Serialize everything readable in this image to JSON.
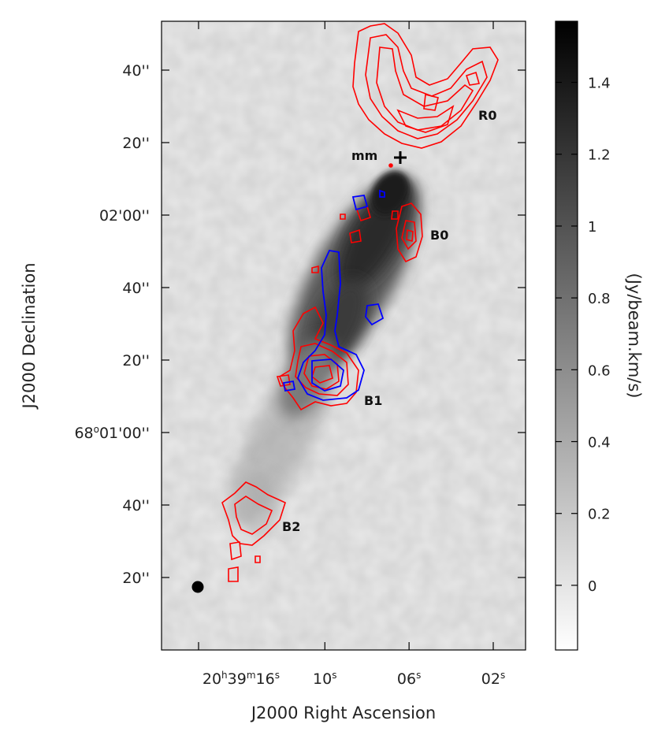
{
  "chart_data": {
    "type": "heatmap",
    "title": "",
    "xlabel": "J2000 Right Ascension",
    "ylabel": "J2000 Declination",
    "x_ticks": [
      {
        "sec": 16,
        "hms": [
          "20",
          "h",
          "39",
          "m",
          "16",
          "s"
        ]
      },
      {
        "sec": 10,
        "hms": [
          "",
          "",
          "",
          "",
          "10",
          "s"
        ]
      },
      {
        "sec": 6,
        "hms": [
          "",
          "",
          "",
          "",
          "06",
          "s"
        ]
      },
      {
        "sec": 2,
        "hms": [
          "",
          "",
          "",
          "",
          "02",
          "s"
        ]
      }
    ],
    "y_ticks": [
      {
        "arcsec_offset": 100,
        "text": "40''"
      },
      {
        "arcsec_offset": 80,
        "text": "20''"
      },
      {
        "arcsec_offset": 60,
        "text": "02'00''"
      },
      {
        "arcsec_offset": 40,
        "text": "40''"
      },
      {
        "arcsec_offset": 20,
        "text": "20''"
      },
      {
        "arcsec_offset": 0,
        "dms": [
          "68",
          "o",
          "01'00''"
        ]
      },
      {
        "arcsec_offset": -20,
        "text": "40''"
      },
      {
        "arcsec_offset": -40,
        "text": "20''"
      }
    ],
    "colorbar": {
      "label": "(Jy/beam.km/s)",
      "range": [
        -0.18,
        1.57
      ],
      "ticks": [
        {
          "value": 0,
          "text": "0"
        },
        {
          "value": 0.2,
          "text": "0.2"
        },
        {
          "value": 0.4,
          "text": "0.4"
        },
        {
          "value": 0.6,
          "text": "0.6"
        },
        {
          "value": 0.8,
          "text": "0.8"
        },
        {
          "value": 1,
          "text": "1"
        },
        {
          "value": 1.2,
          "text": "1.2"
        },
        {
          "value": 1.4,
          "text": "1.4"
        }
      ],
      "colormap": "white-to-black"
    },
    "annotations": [
      {
        "id": "R0",
        "text": "R0"
      },
      {
        "id": "B0",
        "text": "B0"
      },
      {
        "id": "B1",
        "text": "B1"
      },
      {
        "id": "B2",
        "text": "B2"
      },
      {
        "id": "mm",
        "text": "mm"
      }
    ],
    "contours": [
      {
        "name": "red",
        "color": "#ff0000"
      },
      {
        "name": "blue",
        "color": "#0000ff"
      }
    ]
  }
}
